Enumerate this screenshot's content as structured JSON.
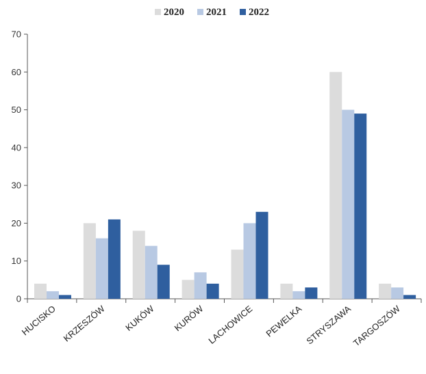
{
  "chart_data": {
    "type": "bar",
    "title": "",
    "xlabel": "",
    "ylabel": "",
    "categories": [
      "HUCISKO",
      "KRZESZÓW",
      "KUKÓW",
      "KURÓW",
      "LACHOWICE",
      "PEWELKA",
      "STRYSZAWA",
      "TARGOSZÓW"
    ],
    "series": [
      {
        "name": "2020",
        "color": "#dcdcdc",
        "values": [
          4,
          20,
          18,
          5,
          13,
          4,
          60,
          4
        ]
      },
      {
        "name": "2021",
        "color": "#b8c9e3",
        "values": [
          2,
          16,
          14,
          7,
          20,
          2,
          50,
          3
        ]
      },
      {
        "name": "2022",
        "color": "#2f5f9f",
        "values": [
          1,
          21,
          9,
          4,
          23,
          3,
          49,
          1
        ]
      }
    ],
    "ylim": [
      0,
      70
    ],
    "yticks": [
      0,
      10,
      20,
      30,
      40,
      50,
      60,
      70
    ],
    "grid": false,
    "legend": "top"
  }
}
